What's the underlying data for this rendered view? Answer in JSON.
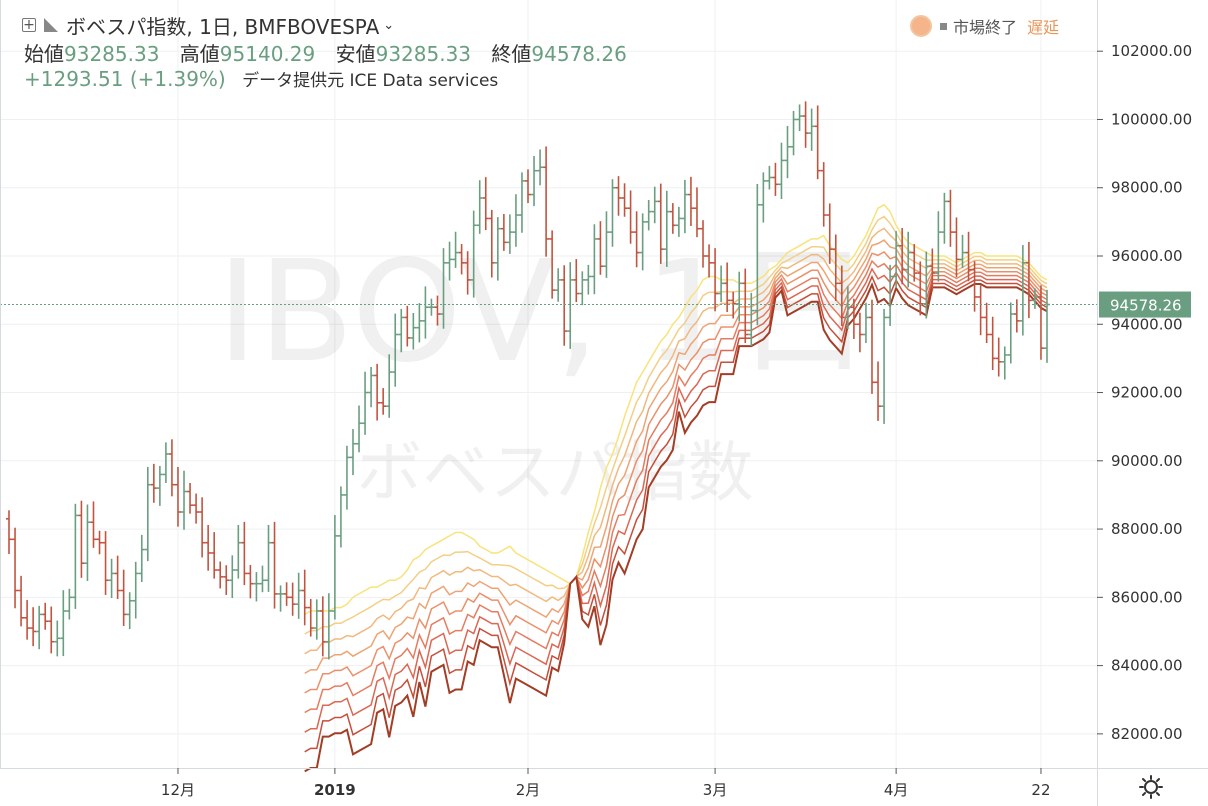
{
  "header": {
    "symbol_line": "ボベスパ指数, 1日, BMFBOVESPA",
    "ohlc": [
      {
        "label": "始値",
        "value": "93285.33"
      },
      {
        "label": "高値",
        "value": "95140.29"
      },
      {
        "label": "安値",
        "value": "93285.33"
      },
      {
        "label": "終値",
        "value": "94578.26"
      }
    ],
    "change": "+1293.51 (+1.39%)",
    "provider": "データ提供元 ICE Data services"
  },
  "status": {
    "market_closed": "市場終了",
    "delayed": "遅延"
  },
  "watermark": {
    "line1": "IBOV, 1日",
    "line2": "ボベスパ指数"
  },
  "colors": {
    "up": "#6a9e80",
    "down": "#c2543f",
    "grid": "#eef0f2",
    "axis_text": "#333333",
    "price_tag": "#6a9e80",
    "ribbon": [
      "#f8e37a",
      "#f3cf85",
      "#f0b97e",
      "#eda474",
      "#ea906a",
      "#e57c60",
      "#dc6753",
      "#c64e3a",
      "#a33d25"
    ]
  },
  "chart_data": {
    "type": "candlestick",
    "title": "ボベスパ指数, 1日, BMFBOVESPA",
    "ylim": [
      81000,
      103500
    ],
    "y_ticks": [
      "82000.00",
      "84000.00",
      "86000.00",
      "88000.00",
      "90000.00",
      "92000.00",
      "94000.00",
      "96000.00",
      "98000.00",
      "100000.00",
      "102000.00"
    ],
    "x_ticks": [
      {
        "label": "12月",
        "index": 28,
        "bold": false
      },
      {
        "label": "2019",
        "index": 54,
        "bold": true
      },
      {
        "label": "2月",
        "index": 86,
        "bold": false
      },
      {
        "label": "3月",
        "index": 117,
        "bold": false
      },
      {
        "label": "4月",
        "index": 147,
        "bold": false
      },
      {
        "label": "22",
        "index": 171,
        "bold": false
      }
    ],
    "last_price": "94578.26",
    "grid": true,
    "closes": [
      87700,
      86200,
      85400,
      85100,
      85000,
      85500,
      85300,
      84700,
      84800,
      85600,
      86000,
      88400,
      87000,
      88200,
      87700,
      87600,
      86500,
      86700,
      86200,
      85500,
      85900,
      86700,
      87400,
      89300,
      89200,
      89600,
      90200,
      89300,
      88500,
      89100,
      88700,
      88500,
      87600,
      87300,
      86800,
      86600,
      86500,
      86800,
      87600,
      86700,
      86400,
      86400,
      86500,
      87600,
      86100,
      86100,
      86000,
      85800,
      86200,
      85700,
      85100,
      85600,
      84700,
      85600,
      87800,
      89000,
      90100,
      90500,
      91100,
      92000,
      92500,
      91700,
      91600,
      92600,
      93700,
      94200,
      93600,
      93900,
      94100,
      94500,
      94500,
      94300,
      95800,
      95900,
      96100,
      95800,
      95300,
      96900,
      97700,
      97100,
      95800,
      96800,
      96400,
      96700,
      97200,
      98200,
      97800,
      98500,
      98600,
      96500,
      95000,
      95300,
      93800,
      95300,
      94900,
      95300,
      95400,
      96500,
      95700,
      96700,
      98000,
      97700,
      97400,
      96700,
      96100,
      97000,
      97300,
      97600,
      96200,
      97300,
      96900,
      97100,
      97800,
      97400,
      96800,
      96000,
      95800,
      94900,
      95200,
      94700,
      94600,
      95200,
      93700,
      94400,
      97500,
      98200,
      98300,
      98100,
      98800,
      99200,
      100000,
      100100,
      99600,
      99800,
      98500,
      97200,
      96200,
      95200,
      94200,
      94500,
      94000,
      93700,
      94200,
      92300,
      91600,
      94200,
      95400,
      96300,
      95600,
      96100,
      95500,
      94600,
      95700,
      95500,
      96700,
      97600,
      96700,
      95900,
      96100,
      95600,
      94800,
      94200,
      93700,
      93000,
      92900,
      93100,
      94300,
      94100,
      95800,
      94700,
      94800,
      93300,
      94578.26
    ],
    "series": [
      {
        "name": "MA1",
        "values": [
          85500,
          85600,
          85600,
          85600,
          85600,
          85700,
          85700,
          85800,
          86000,
          86100,
          86200,
          86300,
          86300,
          86400,
          86500,
          86500,
          86600,
          86800,
          87100,
          87200,
          87400,
          87500,
          87600,
          87700,
          87800,
          87900,
          87900,
          87800,
          87700,
          87500,
          87400,
          87300,
          87300,
          87400,
          87500,
          87300,
          87200,
          87100,
          87000,
          86900,
          86800,
          86700,
          86600,
          86500,
          86400,
          86600,
          87200,
          87900,
          88500,
          89200,
          89800,
          90200,
          90700,
          91300,
          91800,
          92300,
          92600,
          92900,
          93200,
          93500,
          93700,
          94000,
          94200,
          94500,
          94800,
          95000,
          95300,
          95400,
          95400,
          95300,
          95300,
          95300,
          95200,
          95200,
          95200,
          95300,
          95400,
          95600,
          95700,
          95900,
          96100,
          96200,
          96300,
          96400,
          96500,
          96500,
          96600,
          96300,
          96100,
          95900,
          95800,
          96000,
          96300,
          96600,
          97000,
          97400,
          97500,
          97300,
          96900,
          96600,
          96400,
          96300,
          96200,
          96100,
          96000,
          96000,
          96000,
          95900,
          95800,
          95900,
          96000,
          96100,
          96100,
          96000,
          96000,
          96000,
          96000,
          96000,
          96000,
          95900,
          95800,
          95600,
          95400,
          95300
        ]
      },
      {
        "name": "MA2",
        "values": [
          85000,
          85100,
          85100,
          85200,
          85200,
          85300,
          85300,
          85400,
          85500,
          85600,
          85700,
          85800,
          85900,
          86000,
          86000,
          86100,
          86200,
          86400,
          86600,
          86800,
          86900,
          87100,
          87200,
          87300,
          87300,
          87400,
          87400,
          87400,
          87300,
          87200,
          87100,
          87000,
          87000,
          87000,
          87000,
          86900,
          86800,
          86700,
          86600,
          86500,
          86400,
          86400,
          86300,
          86300,
          86400,
          86600,
          87000,
          87600,
          88200,
          88700,
          89300,
          89800,
          90300,
          90800,
          91300,
          91800,
          92100,
          92500,
          92800,
          93100,
          93300,
          93600,
          93900,
          94100,
          94400,
          94600,
          94900,
          95000,
          95000,
          95000,
          95000,
          95000,
          95000,
          95000,
          95000,
          95100,
          95200,
          95400,
          95600,
          95800,
          95900,
          96000,
          96100,
          96200,
          96300,
          96300,
          96300,
          96000,
          95800,
          95600,
          95600,
          95800,
          96100,
          96400,
          96800,
          97100,
          97200,
          97000,
          96700,
          96400,
          96200,
          96100,
          96000,
          95900,
          95900,
          95900,
          95900,
          95800,
          95700,
          95800,
          95900,
          96000,
          96000,
          95900,
          95900,
          95900,
          95900,
          95900,
          95900,
          95800,
          95700,
          95500,
          95300,
          95200
        ]
      }
    ]
  }
}
